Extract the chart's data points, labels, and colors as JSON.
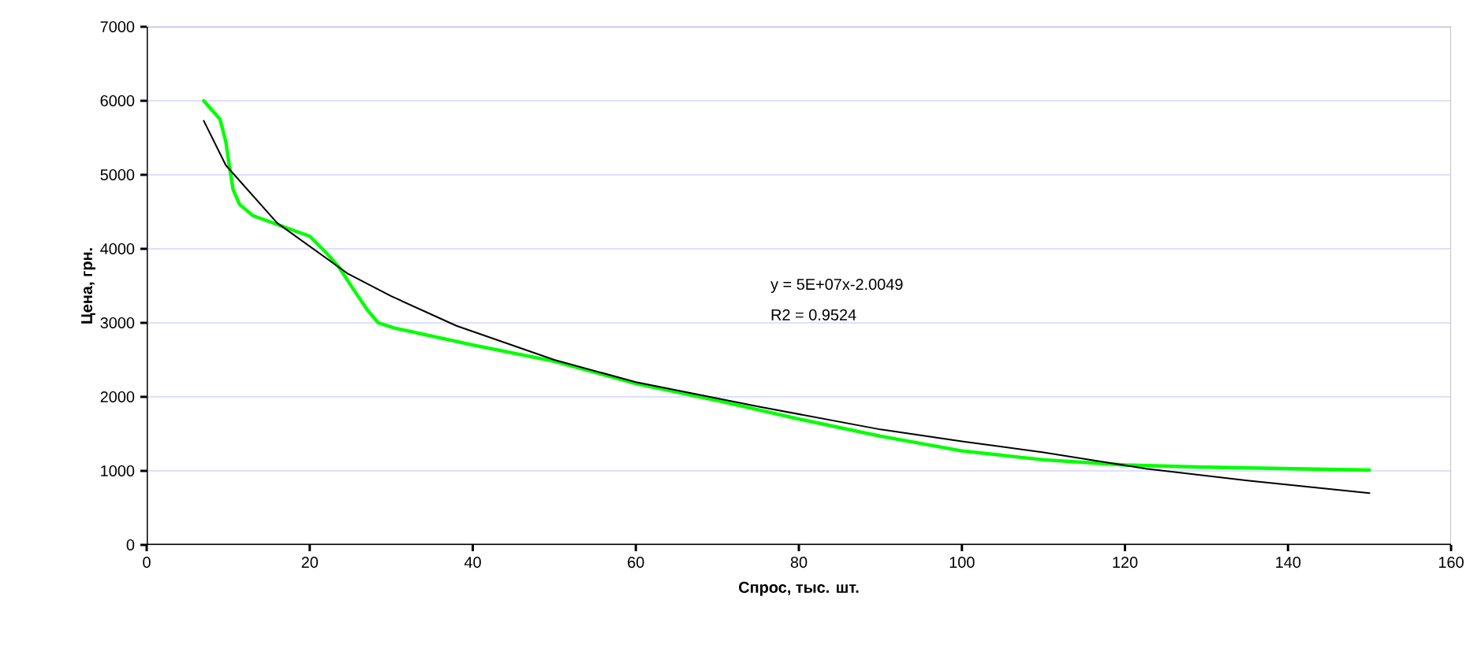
{
  "chart_data": {
    "type": "line",
    "xlabel": "Спрос, тыс. шт.",
    "ylabel": "Цена, грн.",
    "xlim": [
      0,
      160
    ],
    "xticks": [
      0,
      20,
      40,
      60,
      80,
      100,
      120,
      140,
      160
    ],
    "ylim": [
      0,
      7000
    ],
    "yticks": [
      0,
      1000,
      2000,
      3000,
      4000,
      5000,
      6000,
      7000
    ],
    "grid": "y",
    "marker": "none",
    "series": [
      {
        "color": "#00ff00",
        "x": [
          7,
          9,
          9.7,
          10.1,
          10.6,
          11.4,
          13,
          16,
          20,
          22,
          23.6,
          25.5,
          27.1,
          28.4,
          30.4,
          40,
          50,
          60,
          70,
          80,
          90,
          100,
          110,
          120,
          130,
          140,
          150
        ],
        "values": [
          6000,
          5750,
          5450,
          5150,
          4800,
          4600,
          4450,
          4330,
          4170,
          3950,
          3750,
          3430,
          3170,
          3000,
          2930,
          2700,
          2480,
          2180,
          1950,
          1700,
          1470,
          1270,
          1150,
          1080,
          1050,
          1030,
          1010
        ]
      },
      {
        "color": "#000000",
        "x": [
          7,
          9.7,
          16,
          24.6,
          30,
          38,
          50,
          60,
          75,
          90,
          100,
          110,
          122.6,
          135,
          150
        ],
        "values": [
          5730,
          5130,
          4350,
          3670,
          3360,
          2960,
          2500,
          2200,
          1870,
          1560,
          1400,
          1250,
          1030,
          870,
          700
        ]
      }
    ],
    "annotations": [
      "y = 5E+07x-2.0049",
      "R2 = 0.9524"
    ]
  }
}
